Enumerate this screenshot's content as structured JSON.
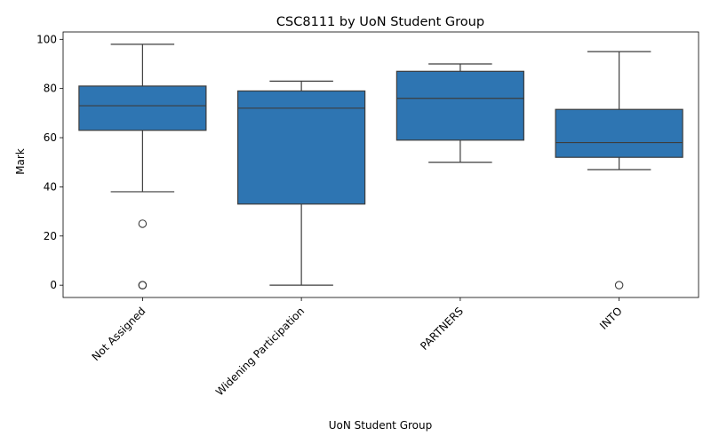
{
  "chart_data": {
    "type": "box",
    "title": "CSC8111 by UoN Student Group",
    "xlabel": "UoN Student Group",
    "ylabel": "Mark",
    "ylim": [
      -5,
      103
    ],
    "yticks": [
      0,
      20,
      40,
      60,
      80,
      100
    ],
    "grid": false,
    "box_color": "#2e75b2",
    "line_color": "#3d3d3d",
    "categories": [
      "Not Assigned",
      "Widening Participation",
      "PARTNERS",
      "INTO"
    ],
    "boxes": [
      {
        "category": "Not Assigned",
        "whisker_low": 38,
        "q1": 63,
        "median": 73,
        "q3": 81,
        "whisker_high": 98,
        "outliers": [
          25,
          0,
          0
        ]
      },
      {
        "category": "Widening Participation",
        "whisker_low": 0,
        "q1": 33,
        "median": 72,
        "q3": 79,
        "whisker_high": 83,
        "outliers": []
      },
      {
        "category": "PARTNERS",
        "whisker_low": 50,
        "q1": 59,
        "median": 76,
        "q3": 87,
        "whisker_high": 90,
        "outliers": []
      },
      {
        "category": "INTO",
        "whisker_low": 47,
        "q1": 52,
        "median": 58,
        "q3": 71.5,
        "whisker_high": 95,
        "outliers": [
          0
        ]
      }
    ]
  }
}
